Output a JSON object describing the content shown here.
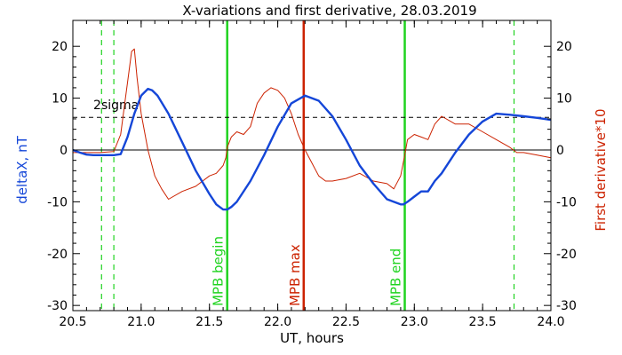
{
  "chart_data": {
    "type": "line",
    "title": "X-variations and first derivative, 28.03.2019",
    "xlabel": "UT, hours",
    "ylabel_left": "deltaX, nT",
    "ylabel_right": "First derivative*10",
    "xlim": [
      20.5,
      24.0
    ],
    "ylim": [
      -31,
      25
    ],
    "x_ticks": [
      20.5,
      21.0,
      21.5,
      22.0,
      22.5,
      23.0,
      23.5,
      24.0
    ],
    "x_tick_labels": [
      "20.5",
      "21.0",
      "21.5",
      "22.0",
      "22.5",
      "23.0",
      "23.5",
      "24.0"
    ],
    "y_ticks": [
      -30,
      -20,
      -10,
      0,
      10,
      20
    ],
    "y_tick_labels": [
      "-30",
      "-20",
      "-10",
      "0",
      "10",
      "20"
    ],
    "grid": false,
    "threshold": {
      "label": "2sigma",
      "y": 6.3
    },
    "zero_line_y": 0,
    "colors": {
      "deltaX": "#1446d8",
      "derivative": "#cc2200",
      "mpb_bounds": "#1fd31f",
      "mpb_max": "#cc2200",
      "axis": "#000000"
    },
    "series": [
      {
        "name": "deltaX, nT",
        "color": "#1446d8",
        "x": [
          20.5,
          20.55,
          20.6,
          20.65,
          20.7,
          20.75,
          20.8,
          20.85,
          20.9,
          20.95,
          21.0,
          21.05,
          21.08,
          21.12,
          21.2,
          21.3,
          21.4,
          21.5,
          21.55,
          21.6,
          21.63,
          21.66,
          21.7,
          21.8,
          21.9,
          22.0,
          22.1,
          22.2,
          22.3,
          22.4,
          22.5,
          22.6,
          22.7,
          22.8,
          22.9,
          22.92,
          22.95,
          23.0,
          23.05,
          23.1,
          23.15,
          23.2,
          23.3,
          23.4,
          23.5,
          23.6,
          23.7,
          23.8,
          23.9,
          24.0
        ],
        "y": [
          0,
          -0.5,
          -0.9,
          -1.0,
          -1.0,
          -1.0,
          -1.0,
          -0.8,
          2.5,
          7.0,
          10.5,
          11.8,
          11.5,
          10.5,
          7.0,
          1.5,
          -4.0,
          -8.5,
          -10.5,
          -11.5,
          -11.5,
          -11.0,
          -10.0,
          -6.0,
          -1.0,
          4.5,
          9.0,
          10.5,
          9.5,
          6.5,
          2.0,
          -3.0,
          -6.5,
          -9.5,
          -10.5,
          -10.5,
          -10.0,
          -9.0,
          -8.0,
          -8.0,
          -6.0,
          -4.5,
          -0.5,
          3.0,
          5.5,
          7.0,
          6.8,
          6.5,
          6.2,
          5.8
        ]
      },
      {
        "name": "First derivative*10",
        "color": "#cc2200",
        "x": [
          20.5,
          20.6,
          20.7,
          20.8,
          20.85,
          20.88,
          20.9,
          20.93,
          20.95,
          20.97,
          21.0,
          21.05,
          21.1,
          21.15,
          21.2,
          21.3,
          21.4,
          21.5,
          21.55,
          21.6,
          21.62,
          21.63,
          21.66,
          21.7,
          21.75,
          21.8,
          21.85,
          21.9,
          21.95,
          22.0,
          22.05,
          22.1,
          22.15,
          22.2,
          22.25,
          22.3,
          22.35,
          22.4,
          22.5,
          22.6,
          22.7,
          22.8,
          22.85,
          22.9,
          22.93,
          22.95,
          23.0,
          23.05,
          23.1,
          23.15,
          23.2,
          23.3,
          23.4,
          23.5,
          23.6,
          23.7,
          23.75,
          23.8,
          23.9,
          24.0
        ],
        "y": [
          -0.5,
          -0.5,
          -0.5,
          -0.3,
          3.0,
          9.0,
          13.0,
          19.0,
          19.5,
          14.0,
          7.0,
          0.0,
          -5.0,
          -7.5,
          -9.5,
          -8.0,
          -7.0,
          -5.0,
          -4.5,
          -3.0,
          -1.5,
          0.5,
          2.5,
          3.5,
          3.0,
          4.5,
          9.0,
          11.0,
          12.0,
          11.5,
          10.0,
          7.0,
          3.0,
          0.0,
          -2.5,
          -5.0,
          -6.0,
          -6.0,
          -5.5,
          -4.5,
          -6.0,
          -6.5,
          -7.5,
          -5.0,
          -1.0,
          2.0,
          3.0,
          2.5,
          2.0,
          5.0,
          6.5,
          5.0,
          5.0,
          3.5,
          2.0,
          0.5,
          -0.5,
          -0.5,
          -1.0,
          -1.5
        ]
      }
    ],
    "vlines": [
      {
        "x": 20.71,
        "style": "dashed",
        "color": "#1fd31f"
      },
      {
        "x": 20.8,
        "style": "dashed",
        "color": "#1fd31f"
      },
      {
        "x": 21.63,
        "style": "solid",
        "color": "#1fd31f",
        "label": "MPB begin"
      },
      {
        "x": 22.19,
        "style": "solid",
        "color": "#cc2200",
        "label": "MPB max"
      },
      {
        "x": 22.93,
        "style": "solid",
        "color": "#1fd31f",
        "label": "MPB end"
      },
      {
        "x": 23.73,
        "style": "dashed",
        "color": "#1fd31f"
      }
    ]
  }
}
